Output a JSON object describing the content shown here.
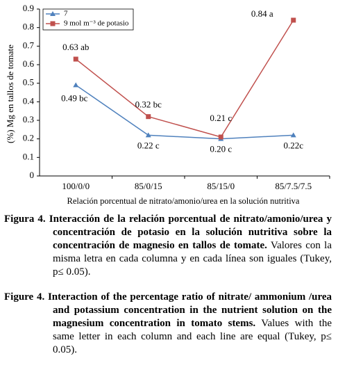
{
  "chart_data": {
    "type": "line",
    "y_label": "(%) Mg en tallos de tomate",
    "x_label": "Relación porcentual de nitrato/amonio/urea en la solución nutritiva",
    "categories": [
      "100/0/0",
      "85/0/15",
      "85/15/0",
      "85/7.5/7.5"
    ],
    "series": [
      {
        "name": "7",
        "color": "#4f81bd",
        "marker": "triangle",
        "values": [
          0.49,
          0.22,
          0.2,
          0.22
        ],
        "value_labels": [
          "0.49 bc",
          "0.22 c",
          "0.20 c",
          "0.22c"
        ]
      },
      {
        "name": "9 mol m⁻³ de potasio",
        "color": "#c0504d",
        "marker": "square",
        "values": [
          0.63,
          0.32,
          0.21,
          0.84
        ],
        "value_labels": [
          "0.63 ab",
          "0.32 bc",
          "0.21 c",
          "0.84 a"
        ]
      }
    ],
    "ylim": [
      0,
      0.9
    ],
    "yticks": [
      0,
      0.1,
      0.2,
      0.3,
      0.4,
      0.5,
      0.6,
      0.7,
      0.8,
      0.9
    ],
    "grid": false,
    "legend": "top-left"
  },
  "captions": [
    {
      "label": "Figura 4.",
      "bold": "Interacción de la relación porcentual de nitrato/amonio/urea y concentración de potasio en la solución nutritiva sobre la concentración de magnesio en tallos de tomate.",
      "text": "Valores con la misma letra en cada columna y en cada línea son iguales (Tukey, p≤ 0.05)."
    },
    {
      "label": "Figure 4.",
      "bold": "Interaction of the percentage ratio of nitrate/ ammonium /urea and potassium concentration in the nutrient solution on the magnesium concentration in tomato stems.",
      "text": "Values with the same letter in each column and each line are equal (Tukey, p≤ 0.05)."
    }
  ]
}
